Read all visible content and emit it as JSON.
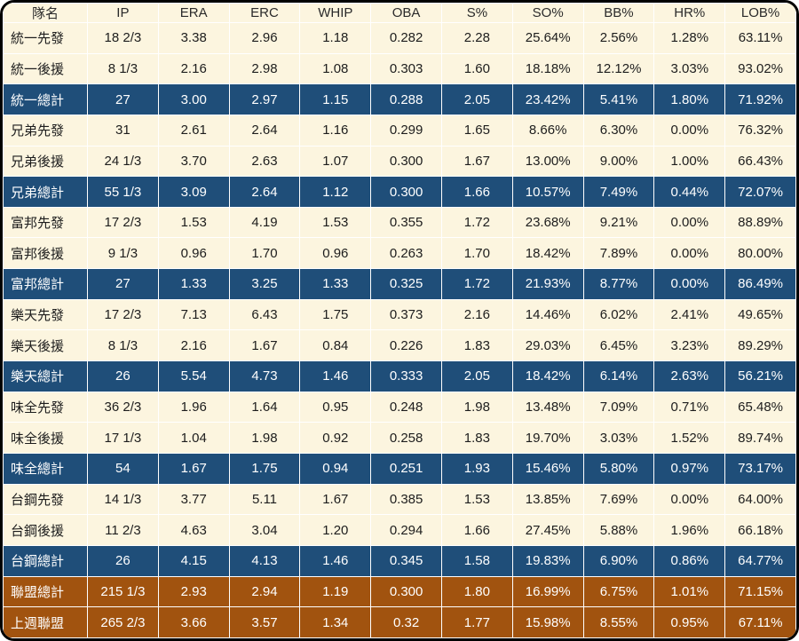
{
  "colors": {
    "cell_background": "#FCF5DF",
    "total_row_background": "#1F4E79",
    "league_row_background": "#A1530F",
    "grid_line": "#FFFFFF",
    "outer_border": "#000000",
    "body_text": "#1D1D1D",
    "inverse_text": "#FFFFFF"
  },
  "chart_data": {
    "type": "table",
    "columns": [
      "隊名",
      "IP",
      "ERA",
      "ERC",
      "WHIP",
      "OBA",
      "S%",
      "SO%",
      "BB%",
      "HR%",
      "LOB%"
    ],
    "rows": [
      {
        "style": "normal",
        "cells": [
          "統一先發",
          "18 2/3",
          "3.38",
          "2.96",
          "1.18",
          "0.282",
          "2.28",
          "25.64%",
          "2.56%",
          "1.28%",
          "63.11%"
        ]
      },
      {
        "style": "normal",
        "cells": [
          "統一後援",
          "8 1/3",
          "2.16",
          "2.98",
          "1.08",
          "0.303",
          "1.60",
          "18.18%",
          "12.12%",
          "3.03%",
          "93.02%"
        ]
      },
      {
        "style": "total",
        "cells": [
          "統一總計",
          "27",
          "3.00",
          "2.97",
          "1.15",
          "0.288",
          "2.05",
          "23.42%",
          "5.41%",
          "1.80%",
          "71.92%"
        ]
      },
      {
        "style": "normal",
        "cells": [
          "兄弟先發",
          "31",
          "2.61",
          "2.64",
          "1.16",
          "0.299",
          "1.65",
          "8.66%",
          "6.30%",
          "0.00%",
          "76.32%"
        ]
      },
      {
        "style": "normal",
        "cells": [
          "兄弟後援",
          "24 1/3",
          "3.70",
          "2.63",
          "1.07",
          "0.300",
          "1.67",
          "13.00%",
          "9.00%",
          "1.00%",
          "66.43%"
        ]
      },
      {
        "style": "total",
        "cells": [
          "兄弟總計",
          "55 1/3",
          "3.09",
          "2.64",
          "1.12",
          "0.300",
          "1.66",
          "10.57%",
          "7.49%",
          "0.44%",
          "72.07%"
        ]
      },
      {
        "style": "normal",
        "cells": [
          "富邦先發",
          "17 2/3",
          "1.53",
          "4.19",
          "1.53",
          "0.355",
          "1.72",
          "23.68%",
          "9.21%",
          "0.00%",
          "88.89%"
        ]
      },
      {
        "style": "normal",
        "cells": [
          "富邦後援",
          "9 1/3",
          "0.96",
          "1.70",
          "0.96",
          "0.263",
          "1.70",
          "18.42%",
          "7.89%",
          "0.00%",
          "80.00%"
        ]
      },
      {
        "style": "total",
        "cells": [
          "富邦總計",
          "27",
          "1.33",
          "3.25",
          "1.33",
          "0.325",
          "1.72",
          "21.93%",
          "8.77%",
          "0.00%",
          "86.49%"
        ]
      },
      {
        "style": "normal",
        "cells": [
          "樂天先發",
          "17 2/3",
          "7.13",
          "6.43",
          "1.75",
          "0.373",
          "2.16",
          "14.46%",
          "6.02%",
          "2.41%",
          "49.65%"
        ]
      },
      {
        "style": "normal",
        "cells": [
          "樂天後援",
          "8 1/3",
          "2.16",
          "1.67",
          "0.84",
          "0.226",
          "1.83",
          "29.03%",
          "6.45%",
          "3.23%",
          "89.29%"
        ]
      },
      {
        "style": "total",
        "cells": [
          "樂天總計",
          "26",
          "5.54",
          "4.73",
          "1.46",
          "0.333",
          "2.05",
          "18.42%",
          "6.14%",
          "2.63%",
          "56.21%"
        ]
      },
      {
        "style": "normal",
        "cells": [
          "味全先發",
          "36 2/3",
          "1.96",
          "1.64",
          "0.95",
          "0.248",
          "1.98",
          "13.48%",
          "7.09%",
          "0.71%",
          "65.48%"
        ]
      },
      {
        "style": "normal",
        "cells": [
          "味全後援",
          "17 1/3",
          "1.04",
          "1.98",
          "0.92",
          "0.258",
          "1.83",
          "19.70%",
          "3.03%",
          "1.52%",
          "89.74%"
        ]
      },
      {
        "style": "total",
        "cells": [
          "味全總計",
          "54",
          "1.67",
          "1.75",
          "0.94",
          "0.251",
          "1.93",
          "15.46%",
          "5.80%",
          "0.97%",
          "73.17%"
        ]
      },
      {
        "style": "normal",
        "cells": [
          "台鋼先發",
          "14 1/3",
          "3.77",
          "5.11",
          "1.67",
          "0.385",
          "1.53",
          "13.85%",
          "7.69%",
          "0.00%",
          "64.00%"
        ]
      },
      {
        "style": "normal",
        "cells": [
          "台鋼後援",
          "11 2/3",
          "4.63",
          "3.04",
          "1.20",
          "0.294",
          "1.66",
          "27.45%",
          "5.88%",
          "1.96%",
          "66.18%"
        ]
      },
      {
        "style": "total",
        "cells": [
          "台鋼總計",
          "26",
          "4.15",
          "4.13",
          "1.46",
          "0.345",
          "1.58",
          "19.83%",
          "6.90%",
          "0.86%",
          "64.77%"
        ]
      },
      {
        "style": "league",
        "cells": [
          "聯盟總計",
          "215 1/3",
          "2.93",
          "2.94",
          "1.19",
          "0.300",
          "1.80",
          "16.99%",
          "6.75%",
          "1.01%",
          "71.15%"
        ]
      },
      {
        "style": "league",
        "cells": [
          "上週聯盟",
          "265 2/3",
          "3.66",
          "3.57",
          "1.34",
          "0.32",
          "1.77",
          "15.98%",
          "8.55%",
          "0.95%",
          "67.11%"
        ]
      }
    ]
  }
}
